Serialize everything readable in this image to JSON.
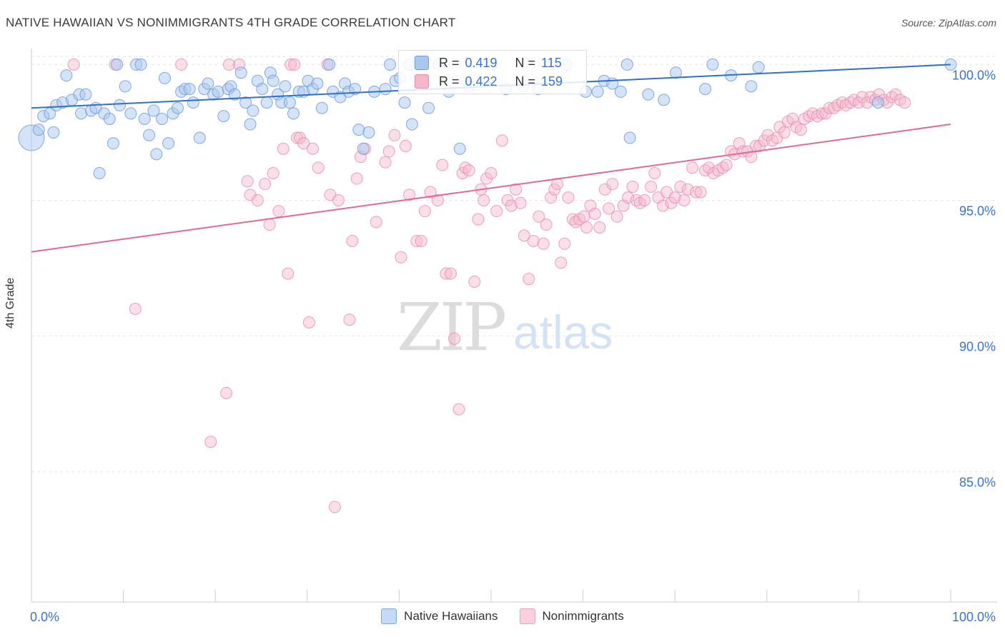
{
  "header": {
    "title": "NATIVE HAWAIIAN VS NONIMMIGRANTS 4TH GRADE CORRELATION CHART",
    "source": "Source: ZipAtlas.com"
  },
  "watermark": {
    "zip": "ZIP",
    "atlas": "atlas"
  },
  "colors": {
    "blue_fill": "#a9c8f0",
    "blue_stroke": "#6f9bd8",
    "blue_line": "#2f6fce",
    "pink_fill": "#f5b8cb",
    "pink_stroke": "#e98aaa",
    "pink_line": "#e4679a",
    "tick_text": "#3a74c9",
    "grid": "#e6e6e6"
  },
  "stats_legend": {
    "rows": [
      {
        "r_label": "R =",
        "r_value": "0.419",
        "n_label": "N =",
        "n_value": "115",
        "color": "#a9c8f0"
      },
      {
        "r_label": "R =",
        "r_value": "0.422",
        "n_label": "N =",
        "n_value": "159",
        "color": "#f5b8cb"
      }
    ]
  },
  "bottom_legend": {
    "items": [
      {
        "label": "Native Hawaiians",
        "color": "#a9c8f0"
      },
      {
        "label": "Nonimmigrants",
        "color": "#f5b8cb"
      }
    ]
  },
  "chart_data": {
    "type": "scatter",
    "title": "NATIVE HAWAIIAN VS NONIMMIGRANTS 4TH GRADE CORRELATION CHART",
    "xlabel": "",
    "ylabel": "4th Grade",
    "xlim": [
      0,
      100
    ],
    "ylim": [
      80.2,
      100.8
    ],
    "x_tick_labels": {
      "left": "0.0%",
      "right": "100.0%"
    },
    "y_ticks": [
      {
        "value": 100,
        "label": "100.0%"
      },
      {
        "value": 95,
        "label": "95.0%"
      },
      {
        "value": 90,
        "label": "90.0%"
      },
      {
        "value": 85,
        "label": "85.0%"
      }
    ],
    "grid": true,
    "legend": "bottom-center",
    "series": [
      {
        "name": "Native Hawaiians",
        "color": "#a9c8f0",
        "trend": {
          "x": [
            0,
            100
          ],
          "y": [
            98.4,
            100.0
          ]
        },
        "points": [
          [
            0,
            97.3
          ],
          [
            0.8,
            97.6
          ],
          [
            1.3,
            98.1
          ],
          [
            2.0,
            98.2
          ],
          [
            2.4,
            97.5
          ],
          [
            2.7,
            98.5
          ],
          [
            3.4,
            98.6
          ],
          [
            3.8,
            99.6
          ],
          [
            4.4,
            98.7
          ],
          [
            5.2,
            98.9
          ],
          [
            5.4,
            98.2
          ],
          [
            5.9,
            98.9
          ],
          [
            6.5,
            98.3
          ],
          [
            7.0,
            98.4
          ],
          [
            7.4,
            96.0
          ],
          [
            7.9,
            98.2
          ],
          [
            8.5,
            98.0
          ],
          [
            8.9,
            97.1
          ],
          [
            9.3,
            100.0
          ],
          [
            9.6,
            98.5
          ],
          [
            10.2,
            99.2
          ],
          [
            10.8,
            98.2
          ],
          [
            11.4,
            100.0
          ],
          [
            11.9,
            100.0
          ],
          [
            12.3,
            98.0
          ],
          [
            12.8,
            97.4
          ],
          [
            13.3,
            98.3
          ],
          [
            13.6,
            96.7
          ],
          [
            14.2,
            98.0
          ],
          [
            14.5,
            99.5
          ],
          [
            14.9,
            97.1
          ],
          [
            15.4,
            98.2
          ],
          [
            15.9,
            98.4
          ],
          [
            16.3,
            99.0
          ],
          [
            16.7,
            99.1
          ],
          [
            17.2,
            99.1
          ],
          [
            17.6,
            98.6
          ],
          [
            18.3,
            97.3
          ],
          [
            18.8,
            99.1
          ],
          [
            19.2,
            99.3
          ],
          [
            19.8,
            98.9
          ],
          [
            20.3,
            99.0
          ],
          [
            20.9,
            98.1
          ],
          [
            21.4,
            99.1
          ],
          [
            21.7,
            99.2
          ],
          [
            22.1,
            98.9
          ],
          [
            22.8,
            99.7
          ],
          [
            23.3,
            98.6
          ],
          [
            23.8,
            97.8
          ],
          [
            24.1,
            98.3
          ],
          [
            24.6,
            99.4
          ],
          [
            25.1,
            99.1
          ],
          [
            25.6,
            98.6
          ],
          [
            26.0,
            99.7
          ],
          [
            26.3,
            99.4
          ],
          [
            26.8,
            98.9
          ],
          [
            27.2,
            98.6
          ],
          [
            27.6,
            99.2
          ],
          [
            28.1,
            98.6
          ],
          [
            28.5,
            98.2
          ],
          [
            29.1,
            99.0
          ],
          [
            29.6,
            99.0
          ],
          [
            30.1,
            99.4
          ],
          [
            30.6,
            99.1
          ],
          [
            31.1,
            99.3
          ],
          [
            31.6,
            98.4
          ],
          [
            32.4,
            100.0
          ],
          [
            32.8,
            99.0
          ],
          [
            33.6,
            98.8
          ],
          [
            34.1,
            99.3
          ],
          [
            34.5,
            99.0
          ],
          [
            35.2,
            99.1
          ],
          [
            35.6,
            97.6
          ],
          [
            36.1,
            96.9
          ],
          [
            36.7,
            97.5
          ],
          [
            37.3,
            99.0
          ],
          [
            38.5,
            99.1
          ],
          [
            39.0,
            100.0
          ],
          [
            39.6,
            99.4
          ],
          [
            40.1,
            99.5
          ],
          [
            40.6,
            98.6
          ],
          [
            41.1,
            100.0
          ],
          [
            41.4,
            97.8
          ],
          [
            42.2,
            100.0
          ],
          [
            42.6,
            99.4
          ],
          [
            43.2,
            98.4
          ],
          [
            44.3,
            100.0
          ],
          [
            45.4,
            99.0
          ],
          [
            46.6,
            96.9
          ],
          [
            47.6,
            99.2
          ],
          [
            50.1,
            100.0
          ],
          [
            51.6,
            99.1
          ],
          [
            53.5,
            99.2
          ],
          [
            55.1,
            99.1
          ],
          [
            56.4,
            100.0
          ],
          [
            58.2,
            100.0
          ],
          [
            60.3,
            99.0
          ],
          [
            61.6,
            99.0
          ],
          [
            62.3,
            99.4
          ],
          [
            63.2,
            99.3
          ],
          [
            64.1,
            99.0
          ],
          [
            64.8,
            100.0
          ],
          [
            65.1,
            97.3
          ],
          [
            67.1,
            98.9
          ],
          [
            68.8,
            98.7
          ],
          [
            70.1,
            99.7
          ],
          [
            73.3,
            99.1
          ],
          [
            74.1,
            100.0
          ],
          [
            76.1,
            99.6
          ],
          [
            78.3,
            99.2
          ],
          [
            79.1,
            99.9
          ],
          [
            92.1,
            98.6
          ],
          [
            100.0,
            100.0
          ]
        ]
      },
      {
        "name": "Nonimmigrants",
        "color": "#f5b8cb",
        "trend": {
          "x": [
            0,
            100
          ],
          "y": [
            93.1,
            97.8
          ]
        },
        "points": [
          [
            4.6,
            100.0
          ],
          [
            9.1,
            100.0
          ],
          [
            11.3,
            91.0
          ],
          [
            16.3,
            100.0
          ],
          [
            19.5,
            86.1
          ],
          [
            21.2,
            87.9
          ],
          [
            21.5,
            100.0
          ],
          [
            22.6,
            100.0
          ],
          [
            23.5,
            95.7
          ],
          [
            23.8,
            95.2
          ],
          [
            24.6,
            95.0
          ],
          [
            25.4,
            95.6
          ],
          [
            25.9,
            94.1
          ],
          [
            26.3,
            96.0
          ],
          [
            26.9,
            94.6
          ],
          [
            27.4,
            96.9
          ],
          [
            27.9,
            92.3
          ],
          [
            28.2,
            100.0
          ],
          [
            28.6,
            100.0
          ],
          [
            28.9,
            97.3
          ],
          [
            29.2,
            97.3
          ],
          [
            29.6,
            97.1
          ],
          [
            30.2,
            90.5
          ],
          [
            30.6,
            96.9
          ],
          [
            31.2,
            96.2
          ],
          [
            32.2,
            100.0
          ],
          [
            32.5,
            95.2
          ],
          [
            33.0,
            83.7
          ],
          [
            33.4,
            95.0
          ],
          [
            34.6,
            90.6
          ],
          [
            34.9,
            93.5
          ],
          [
            35.4,
            95.8
          ],
          [
            35.8,
            96.6
          ],
          [
            36.3,
            96.9
          ],
          [
            37.5,
            94.2
          ],
          [
            38.5,
            96.4
          ],
          [
            38.9,
            96.8
          ],
          [
            39.5,
            97.4
          ],
          [
            40.2,
            92.9
          ],
          [
            40.7,
            97.0
          ],
          [
            41.1,
            95.2
          ],
          [
            41.9,
            93.5
          ],
          [
            42.4,
            93.5
          ],
          [
            42.8,
            94.6
          ],
          [
            43.4,
            95.3
          ],
          [
            44.2,
            95.0
          ],
          [
            44.7,
            96.3
          ],
          [
            45.1,
            92.3
          ],
          [
            45.6,
            92.3
          ],
          [
            46.0,
            89.9
          ],
          [
            46.5,
            87.3
          ],
          [
            46.9,
            96.0
          ],
          [
            47.2,
            96.2
          ],
          [
            47.6,
            96.1
          ],
          [
            48.2,
            92.0
          ],
          [
            48.6,
            94.3
          ],
          [
            48.9,
            95.4
          ],
          [
            49.2,
            95.0
          ],
          [
            49.5,
            95.8
          ],
          [
            50.0,
            96.0
          ],
          [
            50.6,
            94.6
          ],
          [
            51.2,
            97.2
          ],
          [
            51.8,
            95.0
          ],
          [
            52.2,
            94.8
          ],
          [
            52.7,
            95.4
          ],
          [
            53.2,
            94.9
          ],
          [
            53.6,
            93.7
          ],
          [
            54.1,
            92.1
          ],
          [
            54.6,
            93.5
          ],
          [
            55.2,
            94.4
          ],
          [
            55.7,
            93.4
          ],
          [
            56.0,
            94.1
          ],
          [
            56.5,
            95.1
          ],
          [
            56.9,
            95.4
          ],
          [
            57.2,
            95.6
          ],
          [
            57.6,
            92.7
          ],
          [
            58.0,
            93.4
          ],
          [
            58.4,
            95.1
          ],
          [
            58.9,
            94.3
          ],
          [
            59.2,
            94.2
          ],
          [
            59.6,
            94.3
          ],
          [
            60.1,
            94.4
          ],
          [
            60.4,
            94.0
          ],
          [
            60.8,
            94.8
          ],
          [
            61.3,
            94.5
          ],
          [
            61.8,
            94.0
          ],
          [
            62.4,
            95.4
          ],
          [
            62.8,
            94.7
          ],
          [
            63.2,
            95.6
          ],
          [
            63.7,
            94.4
          ],
          [
            64.4,
            94.8
          ],
          [
            64.9,
            95.1
          ],
          [
            65.4,
            95.5
          ],
          [
            65.8,
            95.0
          ],
          [
            66.2,
            94.9
          ],
          [
            66.7,
            95.0
          ],
          [
            67.4,
            95.5
          ],
          [
            67.8,
            96.0
          ],
          [
            68.2,
            95.1
          ],
          [
            68.7,
            94.8
          ],
          [
            69.1,
            95.3
          ],
          [
            69.6,
            94.9
          ],
          [
            70.0,
            95.1
          ],
          [
            70.6,
            95.5
          ],
          [
            71.0,
            95.0
          ],
          [
            71.4,
            95.4
          ],
          [
            71.9,
            96.2
          ],
          [
            72.3,
            95.3
          ],
          [
            72.8,
            95.3
          ],
          [
            73.3,
            96.1
          ],
          [
            73.7,
            96.2
          ],
          [
            74.2,
            96.0
          ],
          [
            74.7,
            96.1
          ],
          [
            75.2,
            96.2
          ],
          [
            75.6,
            96.3
          ],
          [
            76.1,
            96.8
          ],
          [
            76.5,
            96.7
          ],
          [
            77.0,
            97.1
          ],
          [
            77.4,
            96.8
          ],
          [
            77.9,
            96.8
          ],
          [
            78.3,
            96.6
          ],
          [
            78.8,
            97.0
          ],
          [
            79.2,
            97.0
          ],
          [
            79.7,
            97.2
          ],
          [
            80.1,
            97.4
          ],
          [
            80.6,
            97.2
          ],
          [
            81.1,
            97.3
          ],
          [
            81.4,
            97.7
          ],
          [
            81.9,
            97.5
          ],
          [
            82.3,
            97.9
          ],
          [
            82.8,
            98.0
          ],
          [
            83.2,
            97.7
          ],
          [
            83.7,
            97.6
          ],
          [
            84.1,
            98.0
          ],
          [
            84.6,
            98.1
          ],
          [
            85.0,
            98.2
          ],
          [
            85.5,
            98.1
          ],
          [
            86.0,
            98.2
          ],
          [
            86.4,
            98.2
          ],
          [
            86.8,
            98.4
          ],
          [
            87.3,
            98.4
          ],
          [
            87.7,
            98.5
          ],
          [
            88.2,
            98.6
          ],
          [
            88.6,
            98.5
          ],
          [
            89.1,
            98.6
          ],
          [
            89.5,
            98.7
          ],
          [
            90.0,
            98.6
          ],
          [
            90.4,
            98.8
          ],
          [
            90.9,
            98.6
          ],
          [
            91.3,
            98.8
          ],
          [
            91.8,
            98.7
          ],
          [
            92.2,
            98.9
          ],
          [
            92.7,
            98.7
          ],
          [
            93.1,
            98.6
          ],
          [
            93.6,
            98.8
          ],
          [
            94.0,
            98.9
          ],
          [
            94.5,
            98.7
          ],
          [
            95.0,
            98.6
          ]
        ]
      }
    ]
  }
}
